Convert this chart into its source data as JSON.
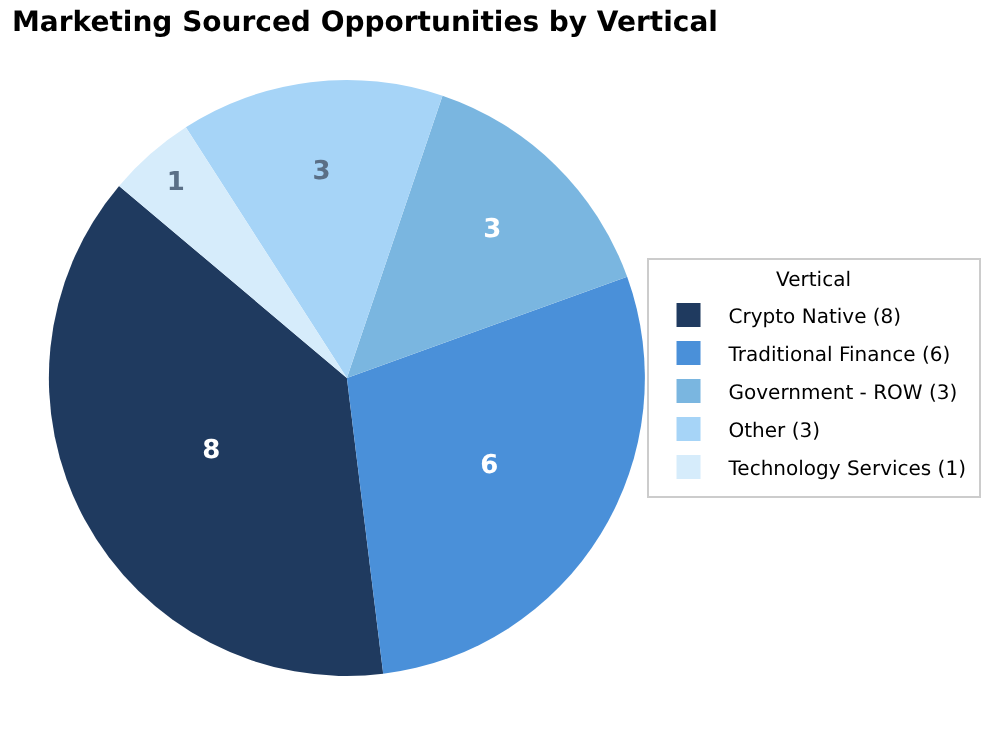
{
  "chart_data": {
    "type": "pie",
    "title": "Marketing Sourced Opportunities by Vertical",
    "legend_title": "Vertical",
    "categories": [
      "Crypto Native (8)",
      "Traditional Finance (6)",
      "Government - ROW (3)",
      "Other (3)",
      "Technology Services (1)"
    ],
    "values": [
      8,
      6,
      3,
      3,
      1
    ],
    "colors": [
      "#1f3a5f",
      "#4a90d9",
      "#7ab6e0",
      "#a6d4f7",
      "#d6ecfb"
    ],
    "data_labels": true,
    "legend": "right"
  }
}
